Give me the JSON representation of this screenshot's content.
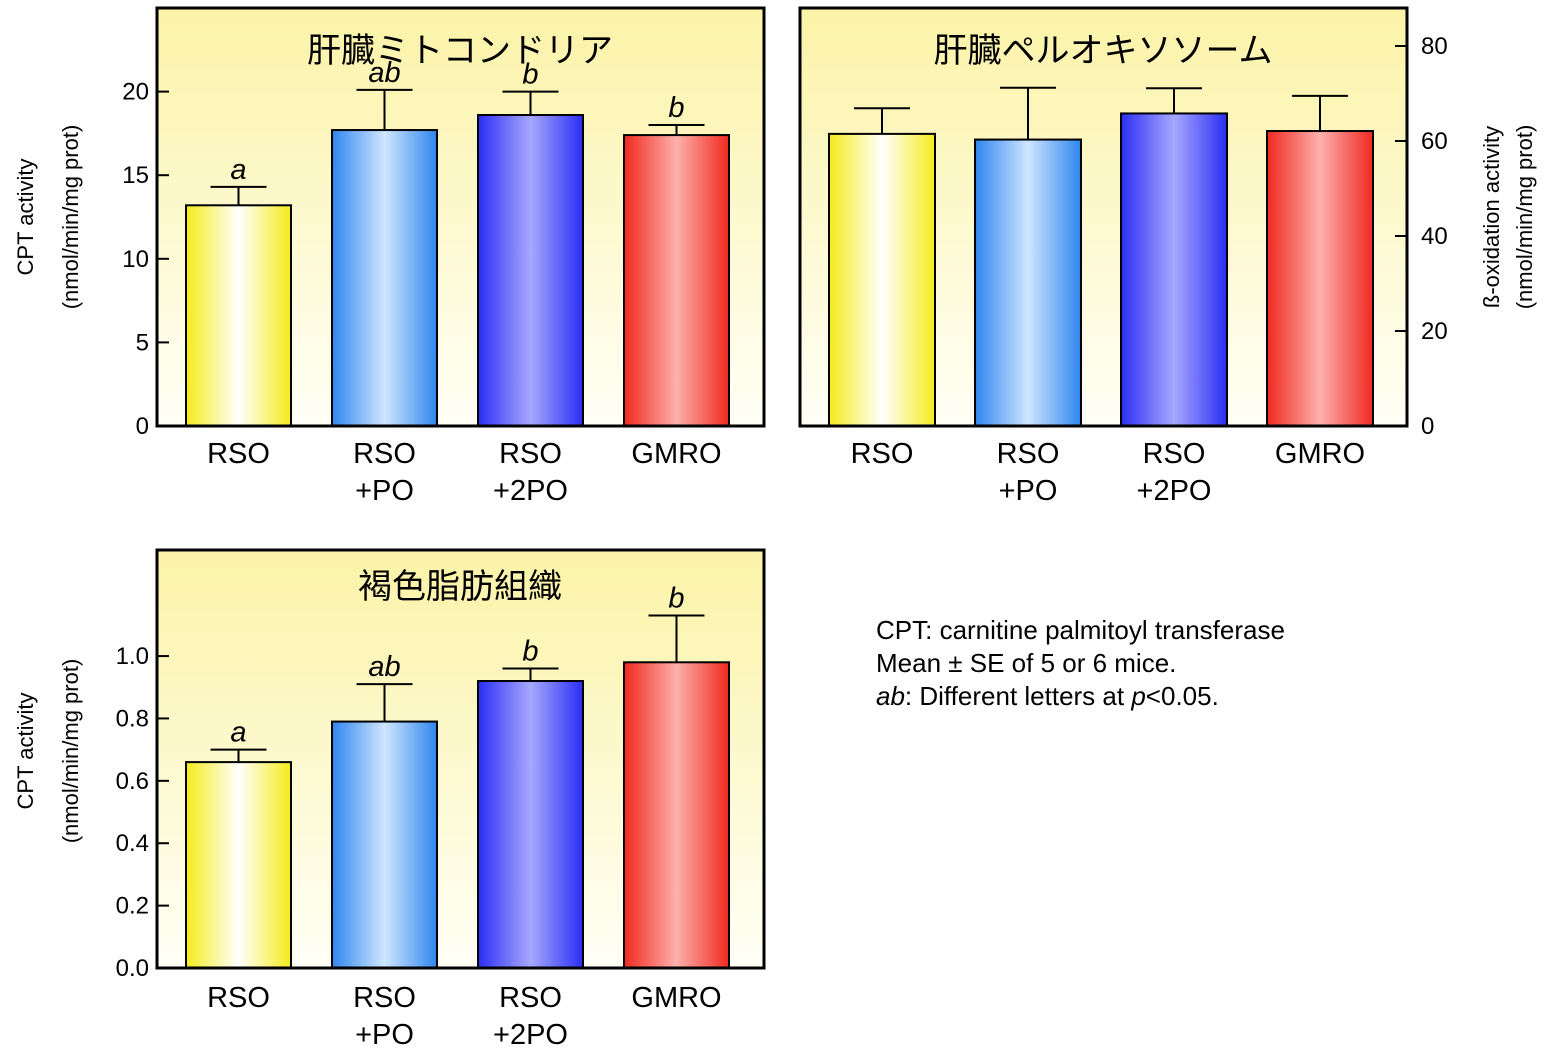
{
  "colors": {
    "panel_bg_top": "#fbf3a7",
    "panel_bg_bottom": "#fffff6",
    "bars": [
      [
        "#f5ec1a",
        "#ffffff",
        "#f5ec1a"
      ],
      [
        "#2f86f0",
        "#cfe6fd",
        "#2f86f0"
      ],
      [
        "#2a2ef2",
        "#a7a8ff",
        "#2a2ef2"
      ],
      [
        "#f0291f",
        "#fdb0ad",
        "#f0291f"
      ]
    ]
  },
  "chart_data": [
    {
      "type": "bar",
      "title": "肝臓ミトコンドリア",
      "categories": [
        "RSO",
        "RSO\n+PO",
        "RSO\n+2PO",
        "GMRO"
      ],
      "values": [
        13.2,
        17.7,
        18.6,
        17.4
      ],
      "errors": [
        1.1,
        2.4,
        1.4,
        0.6
      ],
      "significance": [
        "a",
        "ab",
        "b",
        "b"
      ],
      "ylabel": "CPT activity\n(nmol/min/mg prot)",
      "ylim": [
        0,
        25
      ],
      "yticks": [
        0,
        5,
        10,
        15,
        20
      ],
      "ytick_labels": [
        "0",
        "5",
        "10",
        "15",
        "20"
      ],
      "yaxis_side": "left"
    },
    {
      "type": "bar",
      "title": "肝臓ペルオキソソーム",
      "categories": [
        "RSO",
        "RSO\n+PO",
        "RSO\n+2PO",
        "GMRO"
      ],
      "values": [
        61.5,
        60.3,
        65.8,
        62.1
      ],
      "errors": [
        5.4,
        10.9,
        5.3,
        7.4
      ],
      "significance": [
        "",
        "",
        "",
        ""
      ],
      "ylabel": "ß-oxidation activity\n(nmol/min/mg prot)",
      "ylim": [
        0,
        88
      ],
      "yticks": [
        0,
        20,
        40,
        60,
        80
      ],
      "ytick_labels": [
        "0",
        "20",
        "40",
        "60",
        "80"
      ],
      "yaxis_side": "right"
    },
    {
      "type": "bar",
      "title": "褐色脂肪組織",
      "categories": [
        "RSO",
        "RSO\n+PO",
        "RSO\n+2PO",
        "GMRO"
      ],
      "values": [
        0.66,
        0.79,
        0.92,
        0.98
      ],
      "errors": [
        0.04,
        0.12,
        0.04,
        0.15
      ],
      "significance": [
        "a",
        "ab",
        "b",
        "b"
      ],
      "ylabel": "CPT activity\n(nmol/min/mg prot)",
      "ylim": [
        0,
        1.34
      ],
      "yticks": [
        0,
        0.2,
        0.4,
        0.6,
        0.8,
        1.0
      ],
      "ytick_labels": [
        "0.0",
        "0.2",
        "0.4",
        "0.6",
        "0.8",
        "1.0"
      ],
      "yaxis_side": "left"
    }
  ],
  "notes": {
    "line1": "CPT: carnitine palmitoyl transferase",
    "line2": "Mean ± SE of 5 or 6 mice.",
    "line3_prefix": "ab",
    "line3_mid": ": Different letters at ",
    "line3_p": "p",
    "line3_suffix": "<0.05."
  }
}
